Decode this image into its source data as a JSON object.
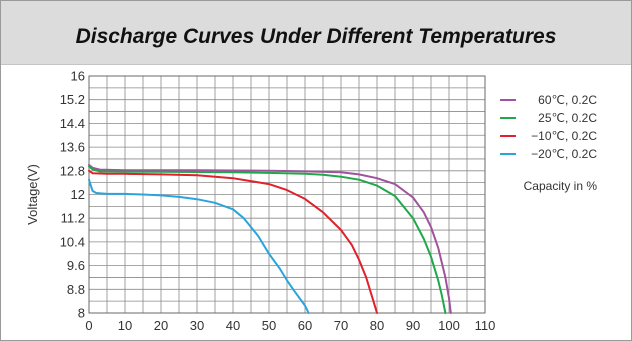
{
  "chart_data": {
    "type": "line",
    "title": "Discharge Curves Under Different Temperatures",
    "ylabel": "Voltage(V)",
    "xlabel": "",
    "xlim": [
      0,
      110
    ],
    "ylim": [
      8,
      16
    ],
    "x_ticks": [
      "0",
      "10",
      "20",
      "30",
      "40",
      "50",
      "60",
      "70",
      "80",
      "90",
      "100",
      "110"
    ],
    "y_ticks": [
      "8",
      "8.8",
      "9.6",
      "10.4",
      "11.2",
      "12",
      "12.8",
      "13.6",
      "14.4",
      "15.2",
      "16"
    ],
    "grid": true,
    "legend_position": "right",
    "legend_note": "Capacity in %",
    "series": [
      {
        "name": "60℃, 0.2C",
        "color": "#a0529c",
        "x": [
          0,
          1,
          3,
          10,
          20,
          30,
          40,
          50,
          60,
          70,
          75,
          80,
          85,
          90,
          93,
          95,
          97,
          99,
          100,
          100.5
        ],
        "y": [
          13.0,
          12.9,
          12.84,
          12.82,
          12.82,
          12.82,
          12.81,
          12.8,
          12.78,
          12.75,
          12.68,
          12.55,
          12.35,
          11.9,
          11.4,
          10.9,
          10.2,
          9.2,
          8.5,
          8.0
        ]
      },
      {
        "name": "25℃, 0.2C",
        "color": "#1fa84a",
        "x": [
          0,
          1,
          3,
          10,
          20,
          30,
          40,
          50,
          60,
          65,
          70,
          75,
          80,
          85,
          90,
          93,
          95,
          97,
          98,
          99
        ],
        "y": [
          12.95,
          12.85,
          12.78,
          12.77,
          12.77,
          12.76,
          12.75,
          12.73,
          12.7,
          12.67,
          12.6,
          12.5,
          12.3,
          11.95,
          11.2,
          10.5,
          9.9,
          9.1,
          8.6,
          8.0
        ]
      },
      {
        "name": "−10℃, 0.2C",
        "color": "#e0202a",
        "x": [
          0,
          1,
          5,
          10,
          20,
          30,
          40,
          50,
          55,
          60,
          65,
          70,
          73,
          75,
          77,
          78,
          79,
          80
        ],
        "y": [
          12.8,
          12.72,
          12.7,
          12.7,
          12.68,
          12.65,
          12.55,
          12.35,
          12.15,
          11.85,
          11.4,
          10.8,
          10.3,
          9.8,
          9.2,
          8.8,
          8.4,
          8.0
        ]
      },
      {
        "name": "−20℃, 0.2C",
        "color": "#2ba4dc",
        "x": [
          0,
          0.5,
          1,
          2,
          5,
          10,
          15,
          20,
          25,
          30,
          35,
          40,
          43,
          45,
          47,
          50,
          53,
          55,
          57,
          60,
          61
        ],
        "y": [
          12.5,
          12.3,
          12.12,
          12.05,
          12.02,
          12.02,
          12.0,
          11.97,
          11.92,
          11.84,
          11.72,
          11.5,
          11.2,
          10.9,
          10.6,
          10.0,
          9.5,
          9.1,
          8.75,
          8.25,
          8.0
        ]
      }
    ]
  }
}
